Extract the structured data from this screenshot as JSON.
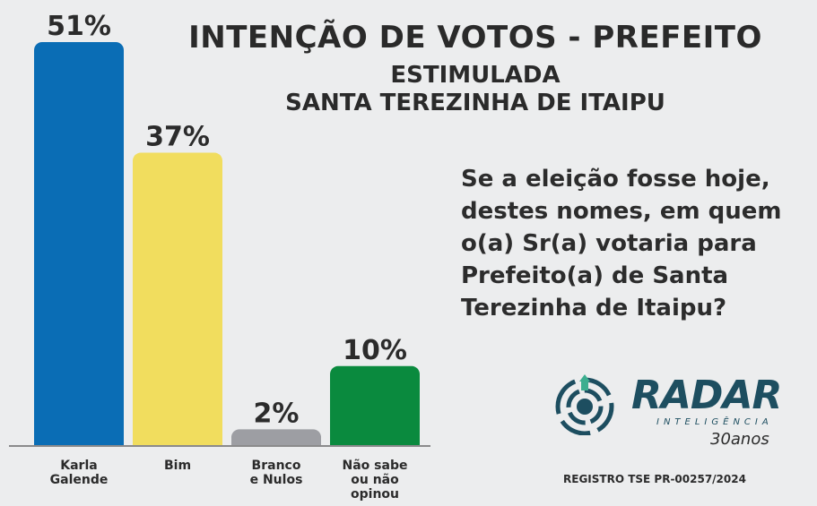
{
  "chart_data": {
    "type": "bar",
    "title": "INTENÇÃO DE VOTOS - PREFEITO",
    "subtitle_1": "ESTIMULADA",
    "subtitle_2": "SANTA TEREZINHA DE ITAIPU",
    "categories": [
      [
        "Karla",
        "Galende"
      ],
      [
        "Bim"
      ],
      [
        "Branco",
        "e Nulos"
      ],
      [
        "Não sabe",
        "ou não",
        "opinou"
      ]
    ],
    "values": [
      51,
      37,
      2,
      10
    ],
    "value_labels": [
      "51%",
      "37%",
      "2%",
      "10%"
    ],
    "colors": [
      "#0a6db5",
      "#f1dd5e",
      "#9d9ea3",
      "#0a8a3e"
    ],
    "ylim": [
      0,
      51
    ],
    "grid": false
  },
  "question": "Se a eleição fosse hoje, destes nomes, em quem o(a) Sr(a) votaria para Prefeito(a) de Santa Terezinha de Itaipu?",
  "logo": {
    "word": "RADAR",
    "sub": "INTELIGÊNCIA",
    "anos": "30anos",
    "color": "#1d4e60"
  },
  "registro": "REGISTRO TSE PR-00257/2024"
}
